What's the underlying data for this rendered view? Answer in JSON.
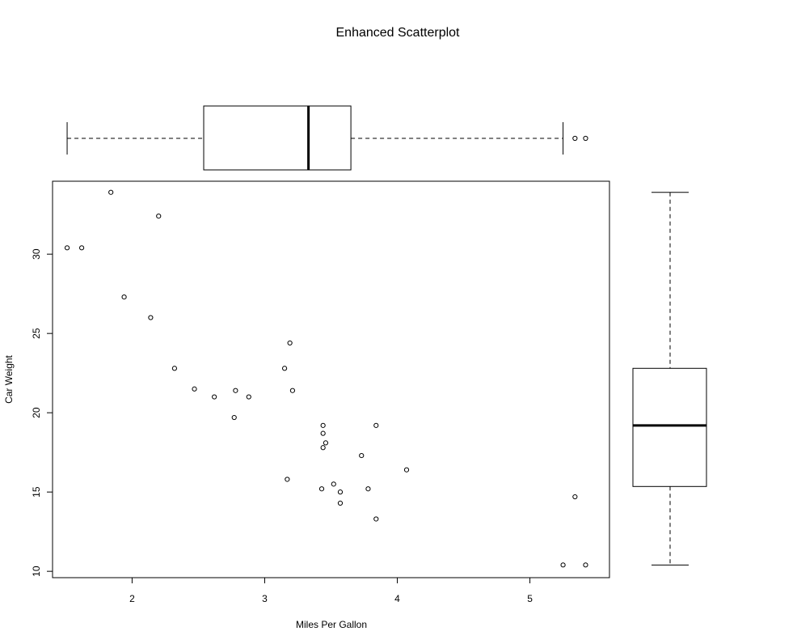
{
  "chart_data": {
    "type": "scatter",
    "title": "Enhanced Scatterplot",
    "xlabel": "Miles Per Gallon",
    "ylabel": "Car Weight",
    "xlim": [
      1.4,
      5.6
    ],
    "ylim": [
      9.6,
      34.6
    ],
    "x_ticks": [
      2,
      3,
      4,
      5
    ],
    "y_ticks": [
      10,
      15,
      20,
      25,
      30
    ],
    "grid": false,
    "points": [
      {
        "x": 1.51,
        "y": 30.4
      },
      {
        "x": 1.62,
        "y": 30.4
      },
      {
        "x": 1.84,
        "y": 33.9
      },
      {
        "x": 1.94,
        "y": 27.3
      },
      {
        "x": 2.14,
        "y": 26.0
      },
      {
        "x": 2.2,
        "y": 32.4
      },
      {
        "x": 2.32,
        "y": 22.8
      },
      {
        "x": 2.47,
        "y": 21.5
      },
      {
        "x": 2.62,
        "y": 21.0
      },
      {
        "x": 2.78,
        "y": 21.4
      },
      {
        "x": 2.77,
        "y": 19.7
      },
      {
        "x": 2.88,
        "y": 21.0
      },
      {
        "x": 3.15,
        "y": 22.8
      },
      {
        "x": 3.19,
        "y": 24.4
      },
      {
        "x": 3.21,
        "y": 21.4
      },
      {
        "x": 3.17,
        "y": 15.8
      },
      {
        "x": 3.44,
        "y": 19.2
      },
      {
        "x": 3.44,
        "y": 18.7
      },
      {
        "x": 3.46,
        "y": 18.1
      },
      {
        "x": 3.44,
        "y": 17.8
      },
      {
        "x": 3.43,
        "y": 15.2
      },
      {
        "x": 3.52,
        "y": 15.5
      },
      {
        "x": 3.57,
        "y": 15.0
      },
      {
        "x": 3.57,
        "y": 14.3
      },
      {
        "x": 3.73,
        "y": 17.3
      },
      {
        "x": 3.78,
        "y": 15.2
      },
      {
        "x": 3.84,
        "y": 19.2
      },
      {
        "x": 3.84,
        "y": 13.3
      },
      {
        "x": 4.07,
        "y": 16.4
      },
      {
        "x": 5.25,
        "y": 10.4
      },
      {
        "x": 5.34,
        "y": 14.7
      },
      {
        "x": 5.42,
        "y": 10.4
      }
    ],
    "x_boxplot": {
      "whisker_low": 1.51,
      "q1": 2.54,
      "median": 3.33,
      "q3": 3.65,
      "whisker_high": 5.25,
      "outliers": [
        5.34,
        5.42
      ]
    },
    "y_boxplot": {
      "whisker_low": 10.4,
      "q1": 15.35,
      "median": 19.2,
      "q3": 22.8,
      "whisker_high": 33.9,
      "outliers": []
    }
  }
}
